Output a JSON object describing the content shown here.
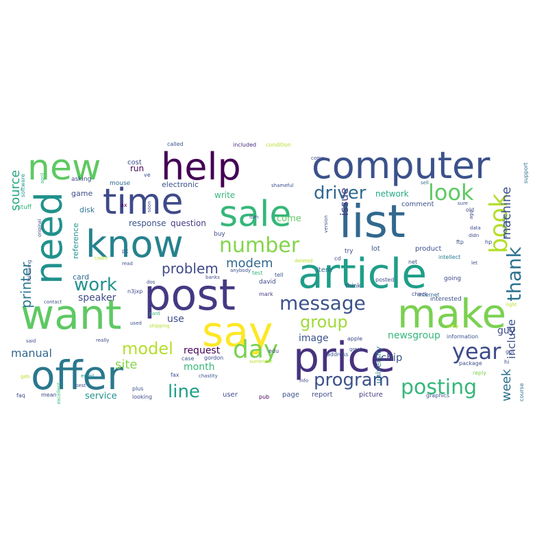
{
  "words": [
    {
      "text": "computer",
      "color": "#3b528b"
    },
    {
      "text": "help",
      "color": "#440154"
    },
    {
      "text": "new",
      "color": "#5ec962"
    },
    {
      "text": "sale",
      "color": "#35b779"
    },
    {
      "text": "list",
      "color": "#31688e"
    },
    {
      "text": "time",
      "color": "#3e4a89"
    },
    {
      "text": "know",
      "color": "#26828e"
    },
    {
      "text": "need",
      "color": "#21918c"
    },
    {
      "text": "article",
      "color": "#1f9e89"
    },
    {
      "text": "post",
      "color": "#443a83"
    },
    {
      "text": "want",
      "color": "#5ec962"
    },
    {
      "text": "say",
      "color": "#fde725"
    },
    {
      "text": "make",
      "color": "#7ad151"
    },
    {
      "text": "offer",
      "color": "#2a788e"
    },
    {
      "text": "price",
      "color": "#46327e"
    },
    {
      "text": "number",
      "color": "#84d44b"
    },
    {
      "text": "book",
      "color": "#b5de2b"
    },
    {
      "text": "look",
      "color": "#5ec962"
    },
    {
      "text": "driver",
      "color": "#31688e"
    },
    {
      "text": "message",
      "color": "#3b528b"
    },
    {
      "text": "group",
      "color": "#a0da39"
    },
    {
      "text": "thank",
      "color": "#2c728e"
    },
    {
      "text": "machine",
      "color": "#3b528b"
    },
    {
      "text": "work",
      "color": "#21918c"
    },
    {
      "text": "printer",
      "color": "#2a788e"
    },
    {
      "text": "source",
      "color": "#22a884"
    },
    {
      "text": "problem",
      "color": "#3e4a89"
    },
    {
      "text": "modem",
      "color": "#31688e"
    },
    {
      "text": "issue",
      "color": "#443a83"
    },
    {
      "text": "day",
      "color": "#7ad151"
    },
    {
      "text": "year",
      "color": "#3e4a89"
    },
    {
      "text": "model",
      "color": "#b5de2b"
    },
    {
      "text": "line",
      "color": "#1f9e89"
    },
    {
      "text": "program",
      "color": "#3b528b"
    },
    {
      "text": "posting",
      "color": "#35b779"
    },
    {
      "text": "week",
      "color": "#2c728e"
    },
    {
      "text": "include",
      "color": "#3b528b"
    },
    {
      "text": "manual",
      "color": "#31688e"
    },
    {
      "text": "site",
      "color": "#86d549"
    },
    {
      "text": "request",
      "color": "#440154"
    },
    {
      "text": "month",
      "color": "#35b779"
    },
    {
      "text": "speaker",
      "color": "#3e4a89"
    },
    {
      "text": "image",
      "color": "#3b528b"
    },
    {
      "text": "newsgroup",
      "color": "#35b779"
    },
    {
      "text": "use",
      "color": "#3e4a89"
    },
    {
      "text": "card",
      "color": "#31688e"
    },
    {
      "text": "response",
      "color": "#3b528b"
    },
    {
      "text": "question",
      "color": "#443a83"
    },
    {
      "text": "reference",
      "color": "#21918c"
    },
    {
      "text": "game",
      "color": "#3e4a89"
    },
    {
      "text": "disk",
      "color": "#2c728e"
    },
    {
      "text": "electronic",
      "color": "#3b528b"
    },
    {
      "text": "write",
      "color": "#35b779"
    },
    {
      "text": "come",
      "color": "#5ec962"
    },
    {
      "text": "network",
      "color": "#22a884"
    },
    {
      "text": "comment",
      "color": "#3b528b"
    },
    {
      "text": "guy",
      "color": "#3e4a89"
    },
    {
      "text": "service",
      "color": "#21918c"
    },
    {
      "text": "chip",
      "color": "#3b528b"
    },
    {
      "text": "university",
      "color": "#2a788e"
    },
    {
      "text": "run",
      "color": "#440154"
    },
    {
      "text": "cost",
      "color": "#3e4a89"
    },
    {
      "text": "called",
      "color": "#3b528b"
    },
    {
      "text": "included",
      "color": "#482878"
    },
    {
      "text": "condition",
      "color": "#b5de2b"
    },
    {
      "text": "software",
      "color": "#21918c"
    },
    {
      "text": "stuff",
      "color": "#35b779"
    },
    {
      "text": "asking",
      "color": "#3e4a89"
    },
    {
      "text": "mouse",
      "color": "#31688e"
    },
    {
      "text": "support",
      "color": "#2c728e"
    },
    {
      "text": "available",
      "color": "#3b528b"
    },
    {
      "text": "lot",
      "color": "#3b528b"
    },
    {
      "text": "try",
      "color": "#3e4a89"
    },
    {
      "text": "item",
      "color": "#31688e"
    },
    {
      "text": "tell",
      "color": "#3b528b"
    },
    {
      "text": "test",
      "color": "#35b779"
    },
    {
      "text": "david",
      "color": "#3e4a89"
    },
    {
      "text": "mark",
      "color": "#443a83"
    },
    {
      "text": "buy",
      "color": "#3e4a89"
    },
    {
      "text": "product",
      "color": "#3b528b"
    },
    {
      "text": "intellect",
      "color": "#2a788e"
    },
    {
      "text": "net",
      "color": "#3e4a89"
    },
    {
      "text": "going",
      "color": "#3e4a89"
    },
    {
      "text": "interested",
      "color": "#3b528b"
    },
    {
      "text": "internet",
      "color": "#31688e"
    },
    {
      "text": "check",
      "color": "#3e4a89"
    },
    {
      "text": "think",
      "color": "#3b528b"
    },
    {
      "text": "posted",
      "color": "#3e4a89"
    },
    {
      "text": "apple",
      "color": "#3e4a89"
    },
    {
      "text": "address",
      "color": "#3b528b"
    },
    {
      "text": "information",
      "color": "#3b528b"
    },
    {
      "text": "package",
      "color": "#3b528b"
    },
    {
      "text": "reply",
      "color": "#7ad151"
    },
    {
      "text": "page",
      "color": "#3b528b"
    },
    {
      "text": "report",
      "color": "#3e4a89"
    },
    {
      "text": "picture",
      "color": "#443a83"
    },
    {
      "text": "graphics",
      "color": "#3b528b"
    },
    {
      "text": "course",
      "color": "#2c728e"
    },
    {
      "text": "user",
      "color": "#3e4a89"
    },
    {
      "text": "pub",
      "color": "#440154"
    },
    {
      "text": "fax",
      "color": "#3e4a89"
    },
    {
      "text": "edu",
      "color": "#3e4a89"
    },
    {
      "text": "case",
      "color": "#3b528b"
    },
    {
      "text": "gordon",
      "color": "#3e4a89"
    },
    {
      "text": "surrender",
      "color": "#b5de2b"
    },
    {
      "text": "chastity",
      "color": "#3b528b"
    },
    {
      "text": "shameful",
      "color": "#3e4a89"
    },
    {
      "text": "anybody",
      "color": "#3b528b"
    },
    {
      "text": "sell",
      "color": "#2c728e"
    },
    {
      "text": "sure",
      "color": "#3b528b"
    },
    {
      "text": "hp",
      "color": "#3e4a89"
    },
    {
      "text": "ftp",
      "color": "#3b528b"
    },
    {
      "text": "old",
      "color": "#3e4a89"
    },
    {
      "text": "data",
      "color": "#3e4a89"
    },
    {
      "text": "didn",
      "color": "#3e4a89"
    },
    {
      "text": "comp",
      "color": "#3e4a89"
    },
    {
      "text": "version",
      "color": "#3b528b"
    },
    {
      "text": "info",
      "color": "#3e4a89"
    },
    {
      "text": "great",
      "color": "#3b528b"
    },
    {
      "text": "cd",
      "color": "#3e4a89"
    },
    {
      "text": "deleted",
      "color": "#b5de2b"
    },
    {
      "text": "banks",
      "color": "#3e4a89"
    },
    {
      "text": "n3jxp",
      "color": "#3e4a89"
    },
    {
      "text": "ax",
      "color": "#440154"
    },
    {
      "text": "pc",
      "color": "#3b528b"
    },
    {
      "text": "cadre",
      "color": "#b5de2b"
    },
    {
      "text": "read",
      "color": "#3b528b"
    },
    {
      "text": "plus",
      "color": "#3b528b"
    },
    {
      "text": "shipping",
      "color": "#b5de2b"
    },
    {
      "text": "looking",
      "color": "#3e4a89"
    },
    {
      "text": "best",
      "color": "#3e4a89"
    },
    {
      "text": "email",
      "color": "#21918c"
    },
    {
      "text": "mean",
      "color": "#3e4a89"
    },
    {
      "text": "faq",
      "color": "#3e4a89"
    },
    {
      "text": "geb",
      "color": "#b5de2b"
    },
    {
      "text": "contact",
      "color": "#3b528b"
    },
    {
      "text": "excellent",
      "color": "#35b779"
    },
    {
      "text": "following",
      "color": "#3b528b"
    },
    {
      "text": "original",
      "color": "#3e4a89"
    },
    {
      "text": "said",
      "color": "#3e4a89"
    },
    {
      "text": "used",
      "color": "#3b528b"
    },
    {
      "text": "really",
      "color": "#3e4a89"
    },
    {
      "text": "ve",
      "color": "#3e4a89"
    },
    {
      "text": "soon",
      "color": "#3e4a89"
    },
    {
      "text": "april",
      "color": "#35b779"
    },
    {
      "text": "got",
      "color": "#3e4a89"
    },
    {
      "text": "hi",
      "color": "#3e4a89"
    },
    {
      "text": "sorry",
      "color": "#b5de2b"
    },
    {
      "text": "right",
      "color": "#b5de2b"
    },
    {
      "text": "let",
      "color": "#3e4a89"
    },
    {
      "text": "ago",
      "color": "#3e4a89"
    },
    {
      "text": "ibm",
      "color": "#3e4a89"
    },
    {
      "text": "dos",
      "color": "#3e4a89"
    },
    {
      "text": "card",
      "color": "#35b779"
    }
  ]
}
